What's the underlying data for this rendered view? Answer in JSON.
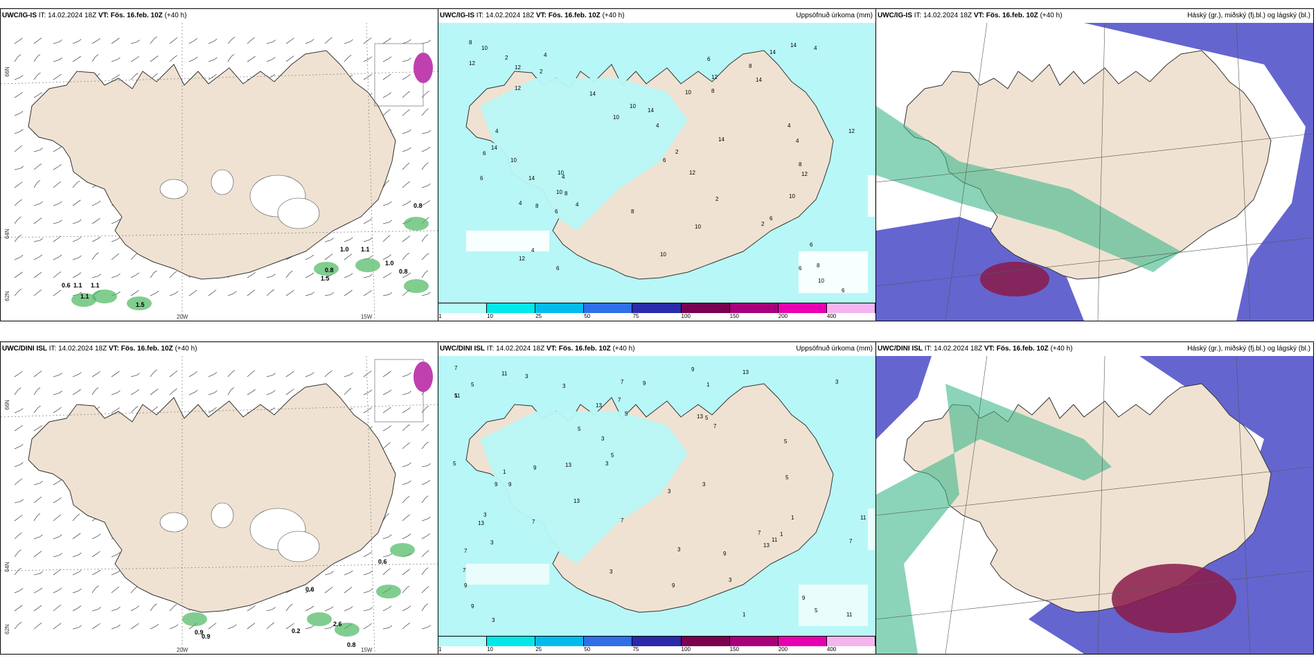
{
  "rows": [
    {
      "model": "UWC/IG-IS",
      "panels": [
        {
          "type": "wind",
          "model": "UWC/IG-IS",
          "it_label": "IT:",
          "it": "14.02.2024 18Z",
          "vt_label": "VT:",
          "vt": "Fös. 16.feb. 10Z",
          "lead": "(+40 h)",
          "right_title": ""
        },
        {
          "type": "precip",
          "model": "UWC/IG-IS",
          "it_label": "IT:",
          "it": "14.02.2024 18Z",
          "vt_label": "VT:",
          "vt": "Fös. 16.feb. 10Z",
          "lead": "(+40 h)",
          "right_title": "Uppsöfnuð úrkoma (mm)"
        },
        {
          "type": "cloud",
          "model": "UWC/IG-IS",
          "it_label": "IT:",
          "it": "14.02.2024 18Z",
          "vt_label": "VT:",
          "vt": "Fös. 16.feb. 10Z",
          "lead": "(+40 h)",
          "right_title": "Háský (gr.), miðský (fj.bl.) og lágský (bl.)"
        }
      ]
    },
    {
      "model": "UWC/DINI ISL",
      "panels": [
        {
          "type": "wind",
          "model": "UWC/DINI ISL",
          "it_label": "IT:",
          "it": "14.02.2024 18Z",
          "vt_label": "VT:",
          "vt": "Fös. 16.feb. 10Z",
          "lead": "(+40 h)",
          "right_title": ""
        },
        {
          "type": "precip",
          "model": "UWC/DINI ISL",
          "it_label": "IT:",
          "it": "14.02.2024 18Z",
          "vt_label": "VT:",
          "vt": "Fös. 16.feb. 10Z",
          "lead": "(+40 h)",
          "right_title": "Uppsöfnuð úrkoma (mm)"
        },
        {
          "type": "cloud",
          "model": "UWC/DINI ISL",
          "it_label": "IT:",
          "it": "14.02.2024 18Z",
          "vt_label": "VT:",
          "vt": "Fös. 16.feb. 10Z",
          "lead": "(+40 h)",
          "right_title": "Háský (gr.), miðský (fj.bl.) og lágský (bl.)"
        }
      ]
    }
  ],
  "axis_labels": {
    "lat_top": "66N",
    "lat_mid": "64N",
    "lat_bottom": "62N",
    "lon_left": "20W",
    "lon_right": "15W"
  },
  "colorbar": {
    "ticks": [
      "1",
      "10",
      "25",
      "50",
      "75",
      "100",
      "150",
      "200",
      "400"
    ],
    "colors": [
      "#b6fafa",
      "#00e8e8",
      "#00bcec",
      "#2f6fe8",
      "#2a2aaa",
      "#7a0050",
      "#a8007a",
      "#e800b0",
      "#f4b4f0"
    ]
  },
  "colors": {
    "land": "#efe2d2",
    "precip_light": "#b8f7f7",
    "cloud_high": "#3db88a",
    "cloud_mid": "#4a4ac8",
    "cloud_low": "#8a1a4a"
  },
  "wind_precip_labels_top": [
    "0.8",
    "1.0",
    "1.1",
    "1.0",
    "0.8",
    "0.8",
    "1.5",
    "0.6",
    "1.1",
    "1.1",
    "1.5",
    "1.1"
  ],
  "wind_precip_labels_bottom": [
    "0.6",
    "0.6",
    "0.2",
    "2.6",
    "0.8",
    "0.9",
    "0.9"
  ]
}
